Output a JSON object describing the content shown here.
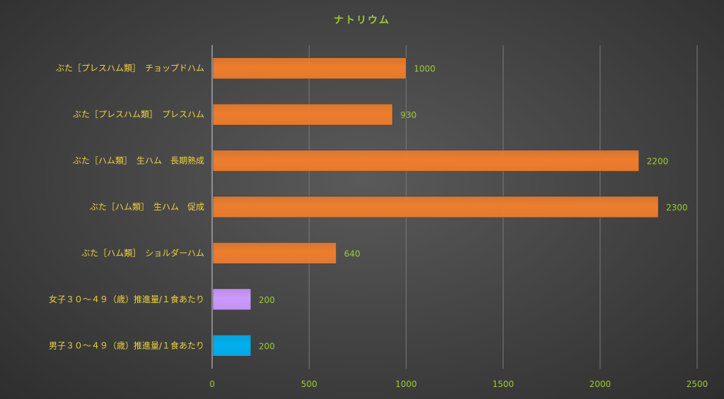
{
  "chart_data": {
    "type": "bar",
    "orientation": "horizontal",
    "title": "ナトリウム",
    "categories": [
      "ぶた［プレスハム類］　チョップドハム",
      "ぶた［プレスハム類］　プレスハム",
      "ぶた［ハム類］　生ハム　長期熟成",
      "ぶた［ハム類］　生ハム　促成",
      "ぶた［ハム類］　ショルダーハム",
      "女子３０～４９（歳）推進量/１食あたり",
      "男子３０～４９（歳）推進量/１食あたり"
    ],
    "values": [
      1000,
      930,
      2200,
      2300,
      640,
      200,
      200
    ],
    "bar_colors": [
      "#ee7d2d",
      "#ee7d2d",
      "#ee7d2d",
      "#ee7d2d",
      "#ee7d2d",
      "#cc99ff",
      "#00b0f0"
    ],
    "xlim": [
      0,
      2500
    ],
    "xticks": [
      0,
      500,
      1000,
      1500,
      2000,
      2500
    ],
    "grid": true,
    "legend": "none",
    "colors": {
      "title": "#9acd32",
      "category_labels": "#f2d23c",
      "tick_labels": "#9acd32",
      "data_labels": "#9acd32"
    }
  }
}
